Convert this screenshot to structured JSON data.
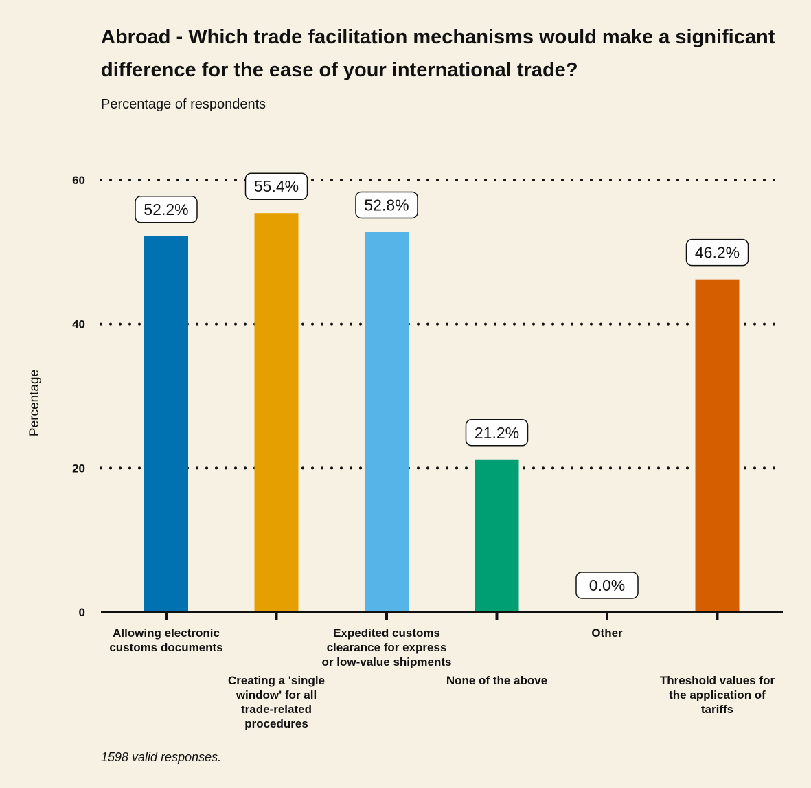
{
  "chart_data": {
    "type": "bar",
    "title": "Abroad - Which trade facilitation mechanisms would make a significant difference for the ease of your international trade?",
    "subtitle": "Percentage of respondents",
    "caption": "1598 valid responses.",
    "ylabel": "Percentage",
    "xlabel": "",
    "ylim": [
      0,
      60
    ],
    "yticks": [
      0,
      20,
      40,
      60
    ],
    "grid": "dotted horizontal",
    "categories": [
      "Allowing electronic customs documents",
      "Creating a 'single window' for all trade-related procedures",
      "Expedited customs clearance for express or low-value shipments",
      "None of the above",
      "Other",
      "Threshold values for the application of tariffs"
    ],
    "category_label_lines": [
      [
        "Allowing electronic",
        "customs documents"
      ],
      [
        "Creating a 'single",
        "window' for all",
        "trade-related",
        "procedures"
      ],
      [
        "Expedited customs",
        "clearance for express",
        "or low-value shipments"
      ],
      [
        "None of the above"
      ],
      [
        "Other"
      ],
      [
        "Threshold values for",
        "the application of",
        "tariffs"
      ]
    ],
    "values": [
      52.2,
      55.4,
      52.8,
      21.2,
      0.0,
      46.2
    ],
    "data_labels": [
      "52.2%",
      "55.4%",
      "52.8%",
      "21.2%",
      "0.0%",
      "46.2%"
    ],
    "colors": [
      "#0072b2",
      "#e69f00",
      "#56b4e9",
      "#009e73",
      "#f0e442",
      "#d55e00"
    ]
  }
}
